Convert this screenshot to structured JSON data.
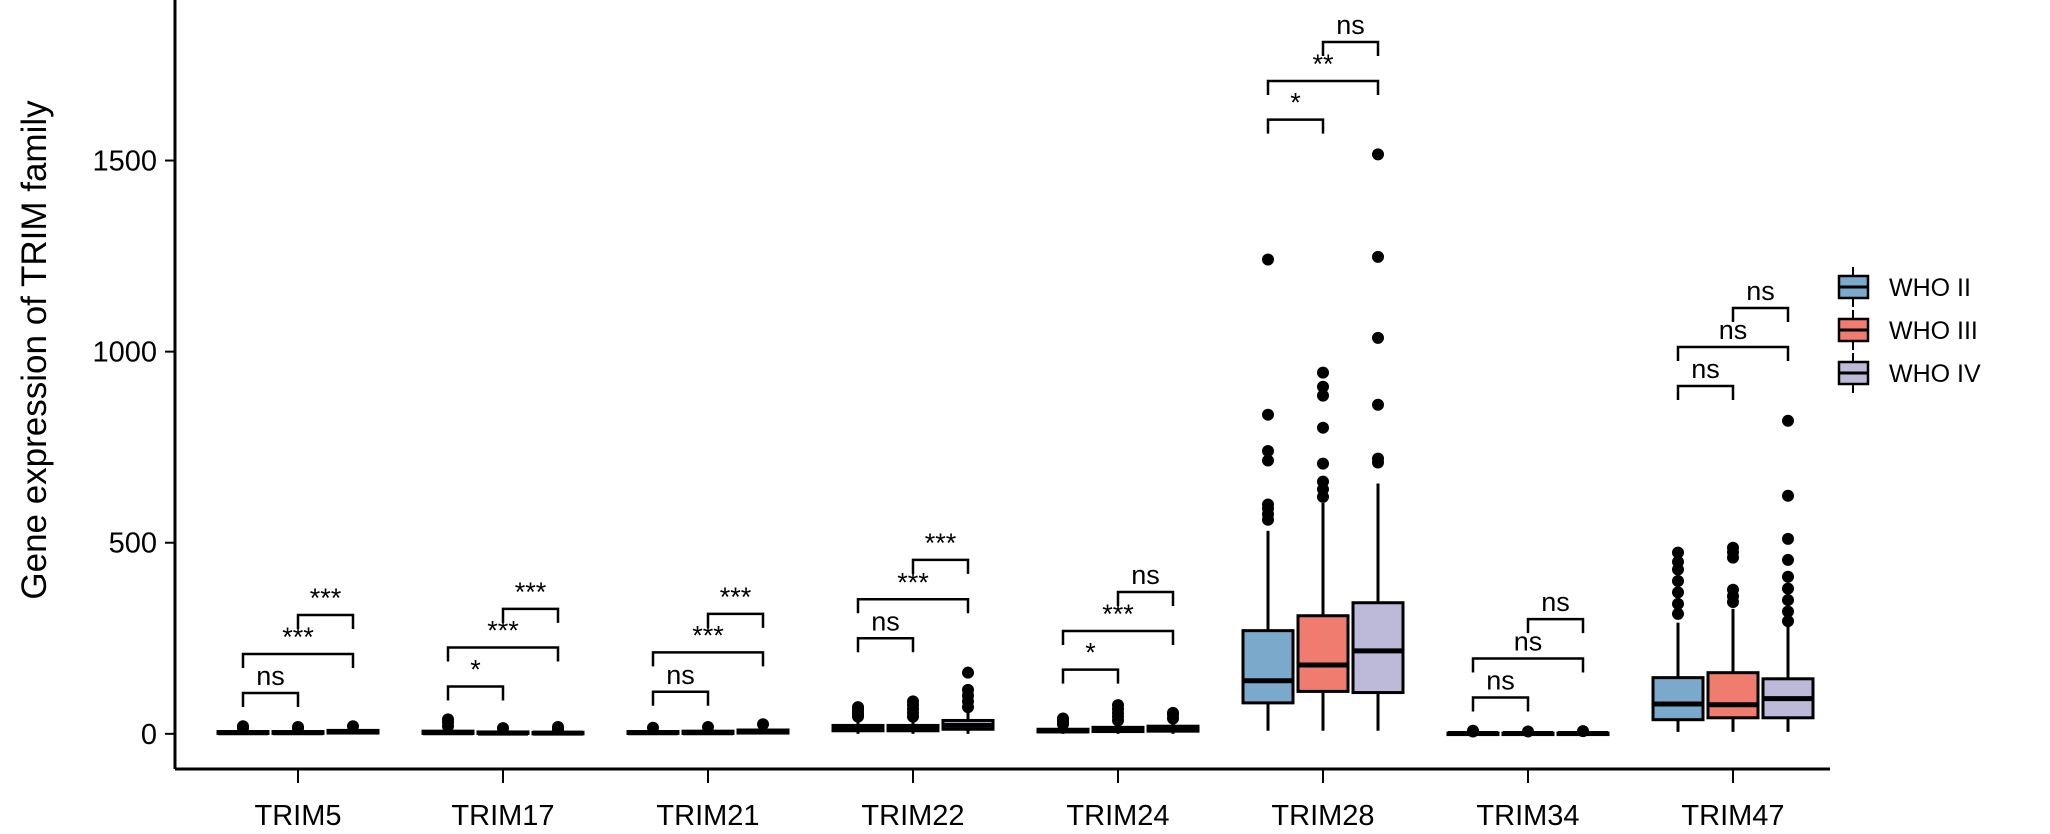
{
  "chart_data": {
    "type": "box",
    "title": "",
    "xlabel": "",
    "ylabel": "Gene expression of TRIM family",
    "ylim": [
      -92,
      1920
    ],
    "yticks": [
      0,
      500,
      1000,
      1500
    ],
    "grid": false,
    "legend_position": "right",
    "categories": [
      "TRIM5",
      "TRIM17",
      "TRIM21",
      "TRIM22",
      "TRIM24",
      "TRIM28",
      "TRIM34",
      "TRIM47"
    ],
    "series": [
      {
        "name": "WHO II",
        "color": "#7BA9CB",
        "boxes": [
          {
            "min": 0,
            "q1": 1,
            "median": 3,
            "q3": 6,
            "max": 12,
            "outliers": [
              15,
              20
            ]
          },
          {
            "min": 0,
            "q1": 1,
            "median": 3,
            "q3": 7,
            "max": 14,
            "outliers": [
              20,
              30,
              38
            ]
          },
          {
            "min": 0,
            "q1": 1,
            "median": 3,
            "q3": 6,
            "max": 12,
            "outliers": [
              16
            ]
          },
          {
            "min": 0,
            "q1": 8,
            "median": 14,
            "q3": 22,
            "max": 40,
            "outliers": [
              45,
              50,
              55,
              60,
              65,
              70
            ]
          },
          {
            "min": 0,
            "q1": 5,
            "median": 8,
            "q3": 12,
            "max": 20,
            "outliers": [
              25,
              30,
              35,
              40
            ]
          },
          {
            "min": 8,
            "q1": 81,
            "median": 139,
            "q3": 270,
            "max": 531,
            "outliers": [
              560,
              575,
              590,
              600,
              715,
              740,
              835,
              1241
            ]
          },
          {
            "min": 0,
            "q1": 0,
            "median": 1,
            "q3": 2,
            "max": 4,
            "outliers": [
              6,
              8
            ]
          },
          {
            "min": 5,
            "q1": 37,
            "median": 78,
            "q3": 147,
            "max": 291,
            "outliers": [
              314,
              340,
              370,
              400,
              430,
              450,
              474
            ]
          }
        ]
      },
      {
        "name": "WHO III",
        "color": "#F07C6F",
        "boxes": [
          {
            "min": 0,
            "q1": 1,
            "median": 3,
            "q3": 6,
            "max": 11,
            "outliers": [
              15,
              18
            ]
          },
          {
            "min": 0,
            "q1": 1,
            "median": 2,
            "q3": 5,
            "max": 10,
            "outliers": [
              15
            ]
          },
          {
            "min": 0,
            "q1": 1,
            "median": 3,
            "q3": 7,
            "max": 13,
            "outliers": [
              18
            ]
          },
          {
            "min": 0,
            "q1": 8,
            "median": 13,
            "q3": 22,
            "max": 40,
            "outliers": [
              45,
              55,
              65,
              75,
              85
            ]
          },
          {
            "min": 0,
            "q1": 6,
            "median": 11,
            "q3": 17,
            "max": 28,
            "outliers": [
              35,
              45,
              55,
              65,
              75
            ]
          },
          {
            "min": 8,
            "q1": 111,
            "median": 180,
            "q3": 309,
            "max": 604,
            "outliers": [
              620,
              640,
              660,
              707,
              801,
              885,
              908,
              945
            ]
          },
          {
            "min": 0,
            "q1": 0,
            "median": 1,
            "q3": 2,
            "max": 4,
            "outliers": [
              6
            ]
          },
          {
            "min": 5,
            "q1": 42,
            "median": 76,
            "q3": 160,
            "max": 327,
            "outliers": [
              345,
              360,
              377,
              461,
              475,
              487
            ]
          }
        ]
      },
      {
        "name": "WHO IV",
        "color": "#BDB9D9",
        "boxes": [
          {
            "min": 0,
            "q1": 2,
            "median": 5,
            "q3": 9,
            "max": 16,
            "outliers": [
              20
            ]
          },
          {
            "min": 0,
            "q1": 0,
            "median": 2,
            "q3": 4,
            "max": 9,
            "outliers": [
              12,
              18
            ]
          },
          {
            "min": 0,
            "q1": 2,
            "median": 6,
            "q3": 10,
            "max": 18,
            "outliers": [
              25
            ]
          },
          {
            "min": 0,
            "q1": 12,
            "median": 22,
            "q3": 35,
            "max": 60,
            "outliers": [
              70,
              85,
              100,
              115,
              160
            ]
          },
          {
            "min": 0,
            "q1": 7,
            "median": 12,
            "q3": 20,
            "max": 30,
            "outliers": [
              40,
              50,
              55
            ]
          },
          {
            "min": 8,
            "q1": 108,
            "median": 217,
            "q3": 343,
            "max": 655,
            "outliers": [
              710,
              720,
              861,
              1036,
              1248,
              1516
            ]
          },
          {
            "min": 0,
            "q1": 0,
            "median": 1,
            "q3": 2,
            "max": 4,
            "outliers": [
              7
            ]
          },
          {
            "min": 5,
            "q1": 42,
            "median": 92,
            "q3": 144,
            "max": 280,
            "outliers": [
              295,
              320,
              350,
              380,
              411,
              455,
              510,
              623,
              819
            ]
          }
        ]
      }
    ],
    "comparisons": [
      {
        "category": "TRIM5",
        "pairs": [
          {
            "groups": [
              "WHO II",
              "WHO III"
            ],
            "label": "ns",
            "y": 107
          },
          {
            "groups": [
              "WHO II",
              "WHO IV"
            ],
            "label": "***",
            "y": 209
          },
          {
            "groups": [
              "WHO III",
              "WHO IV"
            ],
            "label": "***",
            "y": 311
          }
        ]
      },
      {
        "category": "TRIM17",
        "pairs": [
          {
            "groups": [
              "WHO II",
              "WHO III"
            ],
            "label": "*",
            "y": 124
          },
          {
            "groups": [
              "WHO II",
              "WHO IV"
            ],
            "label": "***",
            "y": 226
          },
          {
            "groups": [
              "WHO III",
              "WHO IV"
            ],
            "label": "***",
            "y": 327
          }
        ]
      },
      {
        "category": "TRIM21",
        "pairs": [
          {
            "groups": [
              "WHO II",
              "WHO III"
            ],
            "label": "ns",
            "y": 110
          },
          {
            "groups": [
              "WHO II",
              "WHO IV"
            ],
            "label": "***",
            "y": 213
          },
          {
            "groups": [
              "WHO III",
              "WHO IV"
            ],
            "label": "***",
            "y": 314
          }
        ]
      },
      {
        "category": "TRIM22",
        "pairs": [
          {
            "groups": [
              "WHO II",
              "WHO III"
            ],
            "label": "ns",
            "y": 250
          },
          {
            "groups": [
              "WHO II",
              "WHO IV"
            ],
            "label": "***",
            "y": 352
          },
          {
            "groups": [
              "WHO III",
              "WHO IV"
            ],
            "label": "***",
            "y": 455
          }
        ]
      },
      {
        "category": "TRIM24",
        "pairs": [
          {
            "groups": [
              "WHO II",
              "WHO III"
            ],
            "label": "*",
            "y": 168
          },
          {
            "groups": [
              "WHO II",
              "WHO IV"
            ],
            "label": "***",
            "y": 269
          },
          {
            "groups": [
              "WHO III",
              "WHO IV"
            ],
            "label": "ns",
            "y": 371
          }
        ]
      },
      {
        "category": "TRIM28",
        "pairs": [
          {
            "groups": [
              "WHO II",
              "WHO III"
            ],
            "label": "*",
            "y": 1607
          },
          {
            "groups": [
              "WHO II",
              "WHO IV"
            ],
            "label": "**",
            "y": 1708
          },
          {
            "groups": [
              "WHO III",
              "WHO IV"
            ],
            "label": "ns",
            "y": 1810
          }
        ]
      },
      {
        "category": "TRIM34",
        "pairs": [
          {
            "groups": [
              "WHO II",
              "WHO III"
            ],
            "label": "ns",
            "y": 95
          },
          {
            "groups": [
              "WHO II",
              "WHO IV"
            ],
            "label": "ns",
            "y": 197
          },
          {
            "groups": [
              "WHO III",
              "WHO IV"
            ],
            "label": "ns",
            "y": 300
          }
        ]
      },
      {
        "category": "TRIM47",
        "pairs": [
          {
            "groups": [
              "WHO II",
              "WHO III"
            ],
            "label": "ns",
            "y": 910
          },
          {
            "groups": [
              "WHO II",
              "WHO IV"
            ],
            "label": "ns",
            "y": 1012
          },
          {
            "groups": [
              "WHO III",
              "WHO IV"
            ],
            "label": "ns",
            "y": 1114
          }
        ]
      }
    ]
  }
}
